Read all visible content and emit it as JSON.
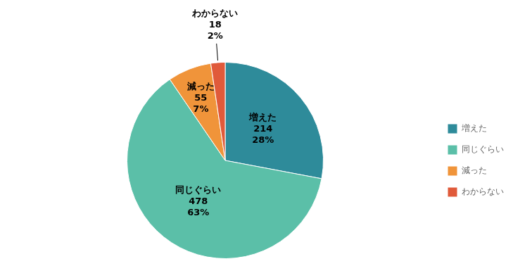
{
  "chart_data": {
    "type": "pie",
    "categories": [
      "増えた",
      "同じぐらい",
      "減った",
      "わからない"
    ],
    "values": [
      214,
      478,
      55,
      18
    ],
    "percentages": [
      {
        "value": 28,
        "label": "28%"
      },
      {
        "value": 63,
        "label": "63%"
      },
      {
        "value": 7,
        "label": "7%"
      },
      {
        "value": 2,
        "label": "2%"
      }
    ],
    "colors": [
      "#2e8b9a",
      "#5bbfa8",
      "#f0943a",
      "#e05a3a"
    ],
    "data_labels": true,
    "legend": "right"
  }
}
